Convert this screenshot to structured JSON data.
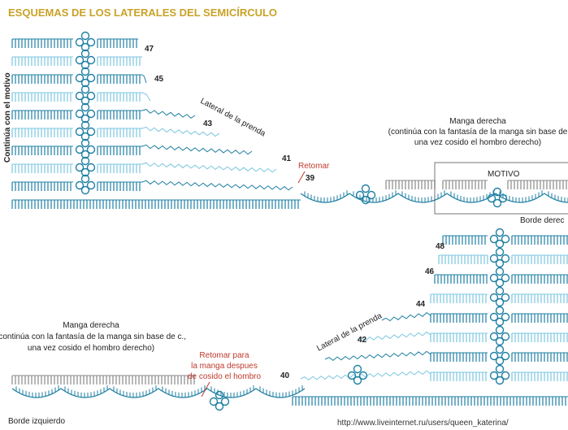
{
  "title": "ESQUEMAS DE LOS LATERALES DEL SEMICÍRCULO",
  "top": {
    "side_label": "Continúa con el motivo",
    "row_numbers": [
      "47",
      "45",
      "43",
      "41",
      "39"
    ],
    "lateral_label": "Lateral de la prenda",
    "retomar": "Retomar",
    "manga": {
      "title": "Manga derecha",
      "line1": "(continúa con la fantasía de la manga sin base de",
      "line2": "una vez cosido el hombro derecho)"
    },
    "motivo": "MOTIVO",
    "borde": "Borde derec"
  },
  "bottom": {
    "row_numbers": [
      "48",
      "46",
      "44",
      "42",
      "40"
    ],
    "lateral_label": "Lateral de la prenda",
    "manga": {
      "title": "Manga derecha",
      "line1": "(continúa con la fantasía de la manga sin base de c.,",
      "line2": "una vez cosido el hombro derecho)"
    },
    "retomar": {
      "line1": "Retomar para",
      "line2": "la manga despues",
      "line3": "de cosido el hombro"
    },
    "borde": "Borde izquierdo"
  },
  "watermark": "http://www.liveinternet.ru/users/queen_katerina/"
}
